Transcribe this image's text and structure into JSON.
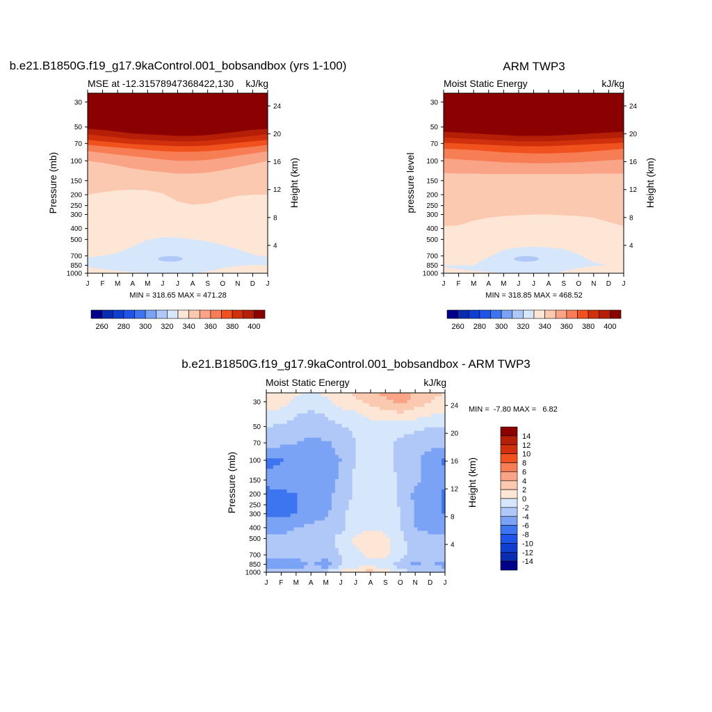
{
  "months": [
    "J",
    "F",
    "M",
    "A",
    "M",
    "J",
    "J",
    "A",
    "S",
    "O",
    "N",
    "D",
    "J"
  ],
  "pressure_ticks": [
    30,
    50,
    70,
    100,
    150,
    200,
    250,
    300,
    400,
    500,
    700,
    850,
    1000
  ],
  "height_ticks": [
    4,
    8,
    12,
    16,
    20,
    24
  ],
  "chart_data": [
    {
      "type": "heatmap",
      "title": "b.e21.B1850G.f19_g17.9kaControl.001_bobsandbox (yrs 1-100)",
      "left_string": "MSE at -12.31578947368422,130",
      "right_string": "kJ/kg",
      "ylabel": "Pressure (mb)",
      "ylabel_right": "Height (km)",
      "x": [
        "J",
        "F",
        "M",
        "A",
        "M",
        "J",
        "J",
        "A",
        "S",
        "O",
        "N",
        "D",
        "J"
      ],
      "y_pressure": [
        30,
        50,
        70,
        100,
        150,
        200,
        250,
        300,
        400,
        500,
        700,
        850,
        1000
      ],
      "min_max": "MIN = 318.65 MAX = 471.28",
      "levels": [
        260,
        270,
        280,
        290,
        300,
        310,
        320,
        330,
        340,
        350,
        360,
        370,
        380,
        390,
        400
      ],
      "colorbar_labels": [
        "260",
        "280",
        "300",
        "320",
        "340",
        "360",
        "380",
        "400"
      ],
      "contour_boundaries_pressure": {
        "400": [
          52,
          53,
          55,
          57,
          58,
          59,
          60,
          60,
          59,
          57,
          55,
          53,
          52
        ],
        "390": [
          58,
          60,
          62,
          64,
          65,
          66,
          67,
          67,
          66,
          64,
          62,
          60,
          58
        ],
        "380": [
          65,
          67,
          69,
          71,
          72,
          73,
          74,
          74,
          73,
          71,
          69,
          67,
          65
        ],
        "370": [
          72,
          74,
          76,
          78,
          80,
          82,
          83,
          83,
          82,
          80,
          77,
          75,
          72
        ],
        "360": [
          82,
          85,
          88,
          91,
          94,
          97,
          100,
          100,
          98,
          94,
          90,
          86,
          82
        ],
        "350": [
          100,
          104,
          110,
          117,
          122,
          126,
          130,
          130,
          127,
          121,
          114,
          107,
          100
        ],
        "340": [
          200,
          190,
          183,
          180,
          183,
          195,
          230,
          245,
          240,
          220,
          205,
          200,
          200
        ],
        "330": [
          720,
          700,
          660,
          580,
          505,
          478,
          480,
          500,
          520,
          560,
          610,
          680,
          720
        ],
        "320": [
          1000,
          1000,
          1000,
          1000,
          790,
          740,
          710,
          700,
          720,
          760,
          800,
          1000,
          1000
        ]
      }
    },
    {
      "type": "heatmap",
      "title": "ARM TWP3",
      "left_string": "Moist Static Energy",
      "right_string": "kJ/kg",
      "ylabel": "pressure level",
      "ylabel_right": "Height (km)",
      "x": [
        "J",
        "F",
        "M",
        "A",
        "M",
        "J",
        "J",
        "A",
        "S",
        "O",
        "N",
        "D",
        "J"
      ],
      "y_pressure": [
        30,
        50,
        70,
        100,
        150,
        200,
        250,
        300,
        400,
        500,
        700,
        850,
        1000
      ],
      "min_max": "MIN = 318.85 MAX = 468.52",
      "levels": [
        260,
        270,
        280,
        290,
        300,
        310,
        320,
        330,
        340,
        350,
        360,
        370,
        380,
        390,
        400
      ],
      "colorbar_labels": [
        "260",
        "280",
        "300",
        "320",
        "340",
        "360",
        "380",
        "400"
      ],
      "contour_boundaries_pressure": {
        "400": [
          55,
          56,
          57,
          58,
          59,
          60,
          60,
          60,
          59,
          58,
          57,
          56,
          55
        ],
        "390": [
          62,
          63,
          64,
          65,
          66,
          67,
          67,
          67,
          66,
          65,
          64,
          63,
          62
        ],
        "380": [
          69,
          70,
          71,
          72,
          73,
          74,
          74,
          74,
          73,
          72,
          71,
          70,
          69
        ],
        "370": [
          78,
          79,
          80,
          82,
          84,
          85,
          86,
          86,
          85,
          84,
          82,
          80,
          78
        ],
        "360": [
          95,
          97,
          99,
          101,
          103,
          104,
          105,
          105,
          104,
          103,
          101,
          99,
          97
        ],
        "350": [
          128,
          130,
          130,
          131,
          131,
          131,
          131,
          131,
          131,
          131,
          130,
          130,
          130
        ],
        "340": [
          380,
          375,
          340,
          320,
          310,
          305,
          300,
          300,
          305,
          310,
          320,
          350,
          380
        ],
        "330": [
          850,
          850,
          850,
          720,
          620,
          590,
          580,
          590,
          610,
          680,
          800,
          850,
          850
        ],
        "320": [
          1000,
          1000,
          1000,
          1000,
          1000,
          780,
          740,
          730,
          760,
          1000,
          1000,
          1000,
          1000
        ]
      }
    },
    {
      "type": "heatmap",
      "title": "b.e21.B1850G.f19_g17.9kaControl.001_bobsandbox - ARM TWP3",
      "left_string": "Moist Static Energy",
      "right_string": "kJ/kg",
      "ylabel": "Pressure (mb)",
      "ylabel_right": "Height (km)",
      "x": [
        "J",
        "F",
        "M",
        "A",
        "M",
        "J",
        "J",
        "A",
        "S",
        "O",
        "N",
        "D",
        "J"
      ],
      "y_pressure": [
        30,
        50,
        70,
        100,
        150,
        200,
        250,
        300,
        400,
        500,
        700,
        850,
        1000
      ],
      "min_max": "MIN =  -7.80 MAX =   6.82",
      "levels": [
        -14,
        -12,
        -10,
        -8,
        -6,
        -4,
        -2,
        0,
        2,
        4,
        6,
        8,
        10,
        12,
        14
      ],
      "colorbar_labels": [
        "14",
        "12",
        "10",
        "8",
        "6",
        "4",
        "2",
        "0",
        "-2",
        "-4",
        "-6",
        "-8",
        "-10",
        "-12",
        "-14"
      ],
      "grid_pressure": [
        25,
        30,
        40,
        50,
        70,
        100,
        150,
        200,
        300,
        400,
        500,
        700,
        850,
        1000
      ],
      "grid_values": [
        [
          2.0,
          1.5,
          0.5,
          -0.5,
          0.5,
          1.5,
          2.5,
          3.5,
          4.5,
          6.5,
          3.5,
          2.5,
          2.0
        ],
        [
          1.5,
          0.8,
          -0.5,
          -1.0,
          -0.5,
          0.8,
          1.5,
          2.5,
          3.5,
          4.5,
          3.0,
          2.0,
          1.5
        ],
        [
          -0.5,
          -1.0,
          -2.0,
          -2.5,
          -2.0,
          -1.0,
          -0.5,
          0.5,
          1.0,
          1.2,
          0.8,
          0.0,
          -0.5
        ],
        [
          -2.0,
          -2.2,
          -2.5,
          -3.0,
          -2.8,
          -2.2,
          -1.5,
          -1.2,
          -1.0,
          -1.0,
          -1.5,
          -2.0,
          -2.0
        ],
        [
          -3.0,
          -3.5,
          -4.0,
          -4.5,
          -4.2,
          -3.5,
          -2.0,
          -1.2,
          -1.5,
          -2.5,
          -3.0,
          -3.2,
          -3.0
        ],
        [
          -6.5,
          -6.2,
          -5.0,
          -4.8,
          -4.5,
          -4.0,
          -2.0,
          -1.0,
          -1.5,
          -2.5,
          -3.5,
          -5.0,
          -6.5
        ],
        [
          -5.5,
          -5.0,
          -4.5,
          -4.5,
          -4.5,
          -3.8,
          -1.5,
          -0.8,
          -0.8,
          -2.5,
          -3.5,
          -4.5,
          -5.0
        ],
        [
          -6.5,
          -6.5,
          -6.0,
          -5.0,
          -4.5,
          -3.5,
          -1.5,
          -0.5,
          -0.5,
          -2.5,
          -4.5,
          -5.0,
          -6.5
        ],
        [
          -6.2,
          -6.5,
          -6.0,
          -5.2,
          -4.5,
          -2.5,
          -1.0,
          -0.5,
          -0.5,
          -2.0,
          -4.0,
          -4.5,
          -6.2
        ],
        [
          -4.5,
          -4.5,
          -4.0,
          -3.5,
          -3.0,
          -2.5,
          -1.0,
          -0.5,
          -0.5,
          -2.0,
          -4.0,
          -4.5,
          -4.5
        ],
        [
          -3.5,
          -3.8,
          -3.5,
          -3.0,
          -2.5,
          -1.5,
          0.5,
          1.5,
          0.5,
          -1.5,
          -3.0,
          -3.5,
          -3.5
        ],
        [
          -3.0,
          -3.0,
          -2.5,
          -3.0,
          -2.5,
          -2.0,
          -0.5,
          0.5,
          0.5,
          -1.0,
          -3.0,
          -2.5,
          -3.0
        ],
        [
          -5.0,
          -5.5,
          -6.0,
          -3.5,
          -6.0,
          -2.0,
          -1.5,
          -1.0,
          -1.2,
          -3.0,
          -4.5,
          -3.5,
          -5.0
        ],
        [
          -2.5,
          -3.0,
          -2.5,
          -2.0,
          -1.5,
          0.5,
          2.5,
          3.0,
          1.0,
          -1.0,
          -2.5,
          -2.0,
          -2.5
        ]
      ]
    }
  ]
}
